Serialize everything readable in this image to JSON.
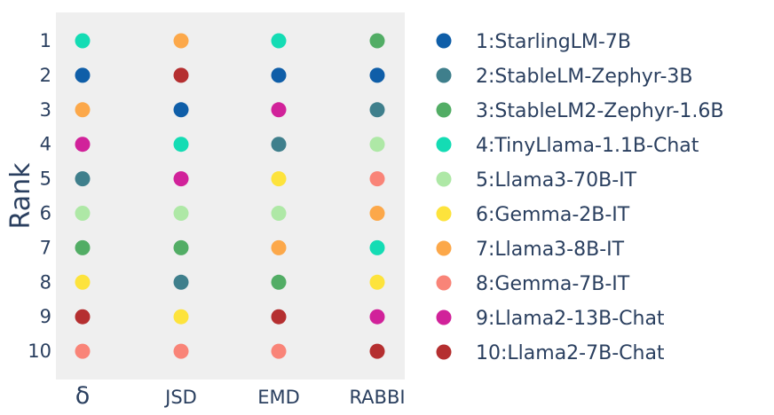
{
  "chart_data": {
    "type": "scatter",
    "ylabel": "Rank",
    "xlabel": "",
    "title": "",
    "categories": [
      "δ",
      "JSD",
      "EMD",
      "RABBI"
    ],
    "ranks": [
      "1",
      "2",
      "3",
      "4",
      "5",
      "6",
      "7",
      "8",
      "9",
      "10"
    ],
    "legend_position": "right",
    "models": [
      {
        "name": "1:StarlingLM-7B",
        "color": "#0f5ea8",
        "ranks": [
          2,
          3,
          2,
          2
        ]
      },
      {
        "name": "2:StableLM-Zephyr-3B",
        "color": "#3f7f8c",
        "ranks": [
          5,
          8,
          4,
          3
        ]
      },
      {
        "name": "3:StableLM2-Zephyr-1.6B",
        "color": "#52ad65",
        "ranks": [
          7,
          7,
          8,
          1
        ]
      },
      {
        "name": "4:TinyLlama-1.1B-Chat",
        "color": "#14dcb4",
        "ranks": [
          1,
          4,
          1,
          7
        ]
      },
      {
        "name": "5:Llama3-70B-IT",
        "color": "#aee8a6",
        "ranks": [
          6,
          6,
          6,
          4
        ]
      },
      {
        "name": "6:Gemma-2B-IT",
        "color": "#fde33c",
        "ranks": [
          8,
          9,
          5,
          8
        ]
      },
      {
        "name": "7:Llama3-8B-IT",
        "color": "#fca84a",
        "ranks": [
          3,
          1,
          7,
          6
        ]
      },
      {
        "name": "8:Gemma-7B-IT",
        "color": "#f98478",
        "ranks": [
          10,
          10,
          10,
          5
        ]
      },
      {
        "name": "9:Llama2-13B-Chat",
        "color": "#d1229a",
        "ranks": [
          4,
          5,
          3,
          9
        ]
      },
      {
        "name": "10:Llama2-7B-Chat",
        "color": "#b52f30",
        "ranks": [
          9,
          2,
          9,
          10
        ]
      }
    ]
  }
}
